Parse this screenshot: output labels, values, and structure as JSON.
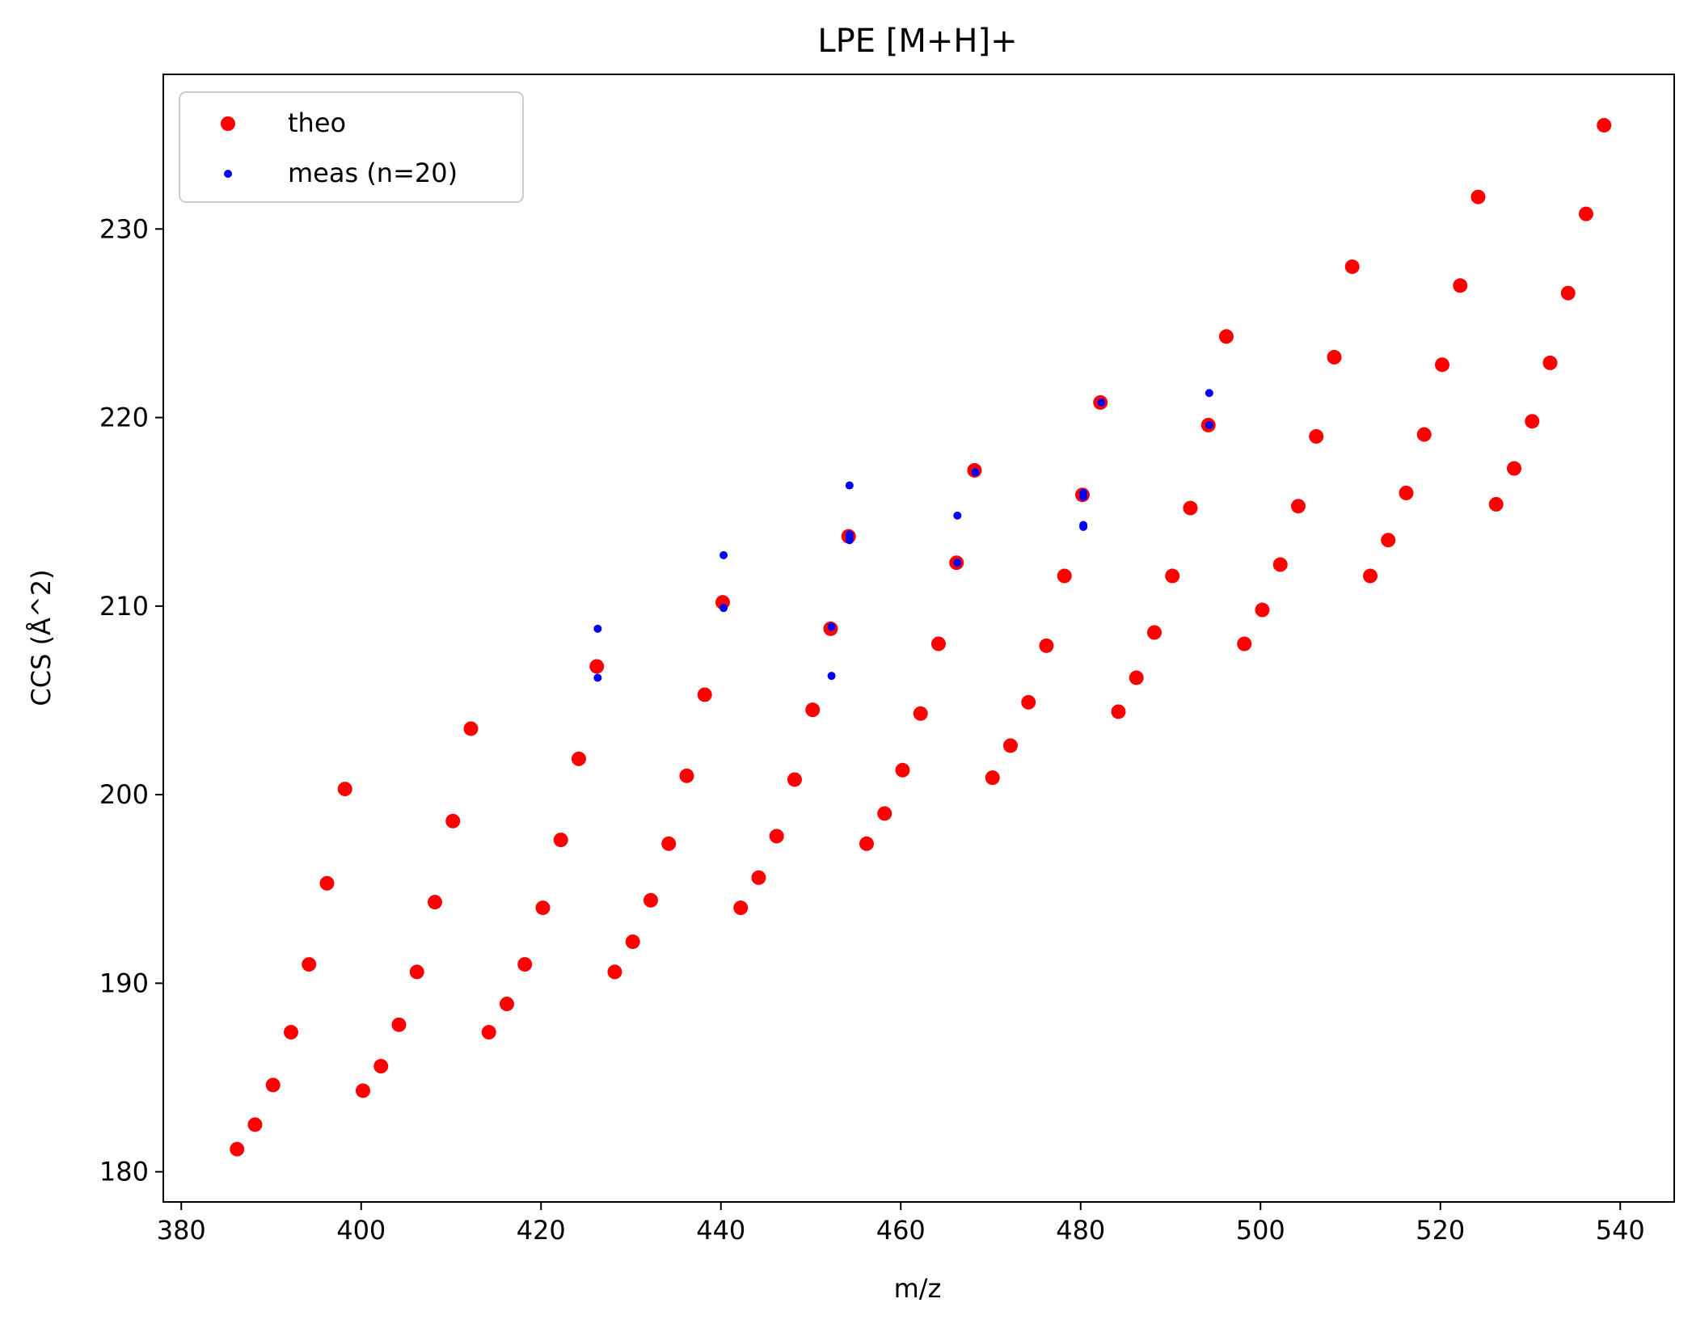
{
  "chart_data": {
    "type": "scatter",
    "title": "LPE [M+H]+",
    "xlabel": "m/z",
    "ylabel": "CCS (Å^2)",
    "xlim": [
      378,
      546
    ],
    "ylim": [
      178.4,
      238.2
    ],
    "xticks": [
      380,
      400,
      420,
      440,
      460,
      480,
      500,
      520,
      540
    ],
    "yticks": [
      180,
      190,
      200,
      210,
      220,
      230
    ],
    "grid": false,
    "legend_position": "top-left",
    "series": [
      {
        "name": "theo",
        "color": "#ff0000",
        "marker": "large-dot",
        "points": [
          [
            386.2,
            181.2
          ],
          [
            388.2,
            182.5
          ],
          [
            390.2,
            184.6
          ],
          [
            392.2,
            187.4
          ],
          [
            394.2,
            191.0
          ],
          [
            396.2,
            195.3
          ],
          [
            398.2,
            200.3
          ],
          [
            400.2,
            184.3
          ],
          [
            402.2,
            185.6
          ],
          [
            404.2,
            187.8
          ],
          [
            406.2,
            190.6
          ],
          [
            408.2,
            194.3
          ],
          [
            410.2,
            198.6
          ],
          [
            412.2,
            203.5
          ],
          [
            414.2,
            187.4
          ],
          [
            416.2,
            188.9
          ],
          [
            418.2,
            191.0
          ],
          [
            420.2,
            194.0
          ],
          [
            422.2,
            197.6
          ],
          [
            424.2,
            201.9
          ],
          [
            426.2,
            206.8
          ],
          [
            428.2,
            190.6
          ],
          [
            430.2,
            192.2
          ],
          [
            432.2,
            194.4
          ],
          [
            434.2,
            197.4
          ],
          [
            436.2,
            201.0
          ],
          [
            438.2,
            205.3
          ],
          [
            440.2,
            210.2
          ],
          [
            442.2,
            194.0
          ],
          [
            444.2,
            195.6
          ],
          [
            446.2,
            197.8
          ],
          [
            448.2,
            200.8
          ],
          [
            450.2,
            204.5
          ],
          [
            452.2,
            208.8
          ],
          [
            454.2,
            213.7
          ],
          [
            456.2,
            197.4
          ],
          [
            458.2,
            199.0
          ],
          [
            460.2,
            201.3
          ],
          [
            462.2,
            204.3
          ],
          [
            464.2,
            208.0
          ],
          [
            466.2,
            212.3
          ],
          [
            468.2,
            217.2
          ],
          [
            470.2,
            200.9
          ],
          [
            472.2,
            202.6
          ],
          [
            474.2,
            204.9
          ],
          [
            476.2,
            207.9
          ],
          [
            478.2,
            211.6
          ],
          [
            480.2,
            215.9
          ],
          [
            482.2,
            220.8
          ],
          [
            484.2,
            204.4
          ],
          [
            486.2,
            206.2
          ],
          [
            488.2,
            208.6
          ],
          [
            490.2,
            211.6
          ],
          [
            492.2,
            215.2
          ],
          [
            494.2,
            219.6
          ],
          [
            496.2,
            224.3
          ],
          [
            498.2,
            208.0
          ],
          [
            500.2,
            209.8
          ],
          [
            502.2,
            212.2
          ],
          [
            504.2,
            215.3
          ],
          [
            506.2,
            219.0
          ],
          [
            508.2,
            223.2
          ],
          [
            510.2,
            228.0
          ],
          [
            512.2,
            211.6
          ],
          [
            514.2,
            213.5
          ],
          [
            516.2,
            216.0
          ],
          [
            518.2,
            219.1
          ],
          [
            520.2,
            222.8
          ],
          [
            522.2,
            227.0
          ],
          [
            524.2,
            231.7
          ],
          [
            526.2,
            215.4
          ],
          [
            528.2,
            217.3
          ],
          [
            530.2,
            219.8
          ],
          [
            532.2,
            222.9
          ],
          [
            534.2,
            226.6
          ],
          [
            536.2,
            230.8
          ],
          [
            538.2,
            235.5
          ]
        ]
      },
      {
        "name": "meas (n=20)",
        "color": "#0000ff",
        "marker": "small-dot",
        "points": [
          [
            426.3,
            208.8
          ],
          [
            426.3,
            206.2
          ],
          [
            440.3,
            212.7
          ],
          [
            440.3,
            209.9
          ],
          [
            452.3,
            208.9
          ],
          [
            452.3,
            206.3
          ],
          [
            454.3,
            216.4
          ],
          [
            454.3,
            213.8
          ],
          [
            454.3,
            213.7
          ],
          [
            454.3,
            213.5
          ],
          [
            466.3,
            214.8
          ],
          [
            466.3,
            212.3
          ],
          [
            468.3,
            217.1
          ],
          [
            480.3,
            216.0
          ],
          [
            480.3,
            215.8
          ],
          [
            480.3,
            214.3
          ],
          [
            480.3,
            214.2
          ],
          [
            482.3,
            220.8
          ],
          [
            494.3,
            221.3
          ],
          [
            494.3,
            219.6
          ]
        ]
      }
    ]
  }
}
